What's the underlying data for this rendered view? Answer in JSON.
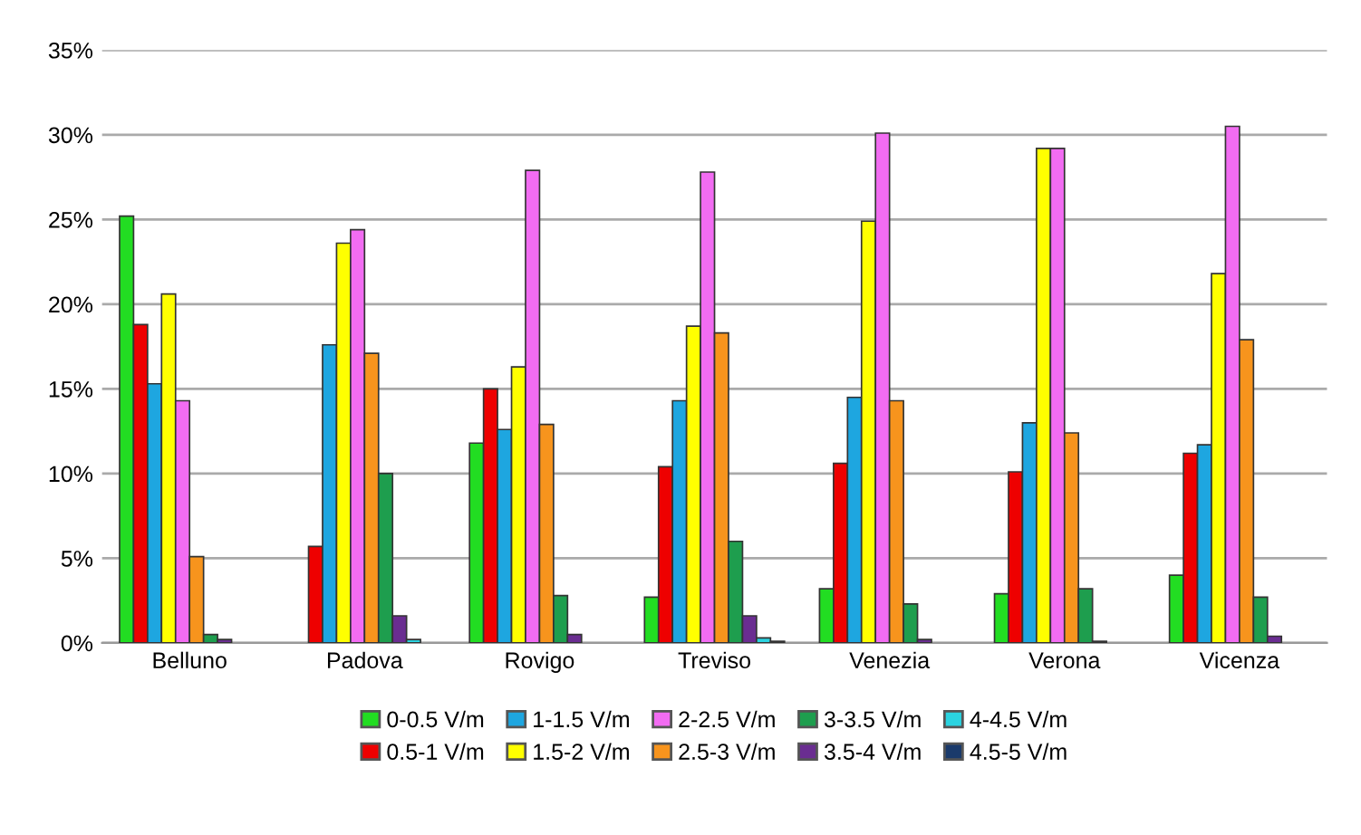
{
  "chart_data": {
    "type": "bar",
    "categories": [
      "Belluno",
      "Padova",
      "Rovigo",
      "Treviso",
      "Venezia",
      "Verona",
      "Vicenza"
    ],
    "series": [
      {
        "name": "0-0.5 V/m",
        "color": "#22dd22",
        "values": [
          25.2,
          null,
          11.8,
          2.7,
          3.2,
          2.9,
          4.0
        ]
      },
      {
        "name": "0.5-1 V/m",
        "color": "#ee0000",
        "values": [
          18.8,
          5.7,
          15.0,
          10.4,
          10.6,
          10.1,
          11.2
        ]
      },
      {
        "name": "1-1.5 V/m",
        "color": "#1ea6e0",
        "values": [
          15.3,
          17.6,
          12.6,
          14.3,
          14.5,
          13.0,
          11.7
        ]
      },
      {
        "name": "1.5-2 V/m",
        "color": "#ffff00",
        "values": [
          20.6,
          23.6,
          16.3,
          18.7,
          24.9,
          29.2,
          21.8
        ]
      },
      {
        "name": "2-2.5 V/m",
        "color": "#f26cf2",
        "values": [
          14.3,
          24.4,
          27.9,
          27.8,
          30.1,
          29.2,
          30.5
        ]
      },
      {
        "name": "2.5-3 V/m",
        "color": "#f7941d",
        "values": [
          5.1,
          17.1,
          12.9,
          18.3,
          14.3,
          12.4,
          17.9
        ]
      },
      {
        "name": "3-3.5 V/m",
        "color": "#1e9e4e",
        "values": [
          0.5,
          10.0,
          2.8,
          6.0,
          2.3,
          3.2,
          2.7
        ]
      },
      {
        "name": "3.5-4 V/m",
        "color": "#6a2d91",
        "values": [
          0.2,
          1.6,
          0.5,
          1.6,
          0.2,
          0.1,
          0.4
        ]
      },
      {
        "name": "4-4.5 V/m",
        "color": "#2bd3e0",
        "values": [
          null,
          0.2,
          null,
          0.3,
          null,
          null,
          null
        ]
      },
      {
        "name": "4.5-5 V/m",
        "color": "#1a3a6b",
        "values": [
          null,
          null,
          null,
          0.1,
          null,
          null,
          null
        ]
      }
    ],
    "ylim": [
      0,
      35
    ],
    "yticks": [
      {
        "value": 0,
        "label": "0%"
      },
      {
        "value": 5,
        "label": "5%"
      },
      {
        "value": 10,
        "label": "10%"
      },
      {
        "value": 15,
        "label": "15%"
      },
      {
        "value": 20,
        "label": "20%"
      },
      {
        "value": 25,
        "label": "25%"
      },
      {
        "value": 30,
        "label": "30%"
      },
      {
        "value": 35,
        "label": "35%"
      }
    ],
    "grid": "y",
    "legend": "bottom"
  }
}
